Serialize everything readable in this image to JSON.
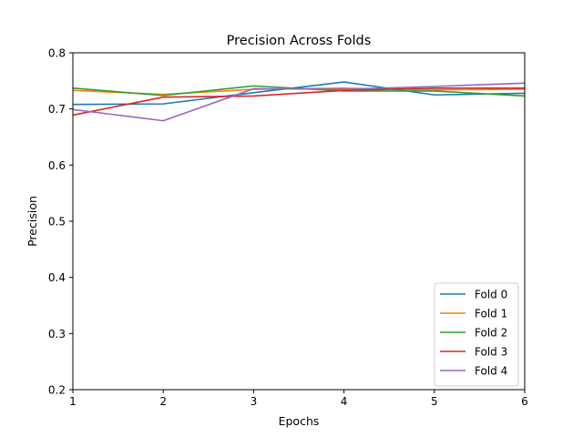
{
  "chart_data": {
    "type": "line",
    "title": "Precision Across Folds",
    "xlabel": "Epochs",
    "ylabel": "Precision",
    "xlim": [
      1,
      6
    ],
    "ylim": [
      0.2,
      0.8
    ],
    "x": [
      1,
      2,
      3,
      4,
      5,
      6
    ],
    "xticks": [
      "1",
      "2",
      "3",
      "4",
      "5",
      "6"
    ],
    "yticks": [
      "0.2",
      "0.3",
      "0.4",
      "0.5",
      "0.6",
      "0.7",
      "0.8"
    ],
    "grid": false,
    "legend_position": "lower-right",
    "series": [
      {
        "name": "Fold 0",
        "color": "#1f77b4",
        "values": [
          0.708,
          0.709,
          0.729,
          0.748,
          0.725,
          0.728
        ]
      },
      {
        "name": "Fold 1",
        "color": "#ff7f0e",
        "values": [
          0.733,
          0.726,
          0.735,
          0.737,
          0.734,
          0.735
        ]
      },
      {
        "name": "Fold 2",
        "color": "#2ca02c",
        "values": [
          0.737,
          0.724,
          0.741,
          0.732,
          0.732,
          0.723
        ]
      },
      {
        "name": "Fold 3",
        "color": "#d62728",
        "values": [
          0.689,
          0.721,
          0.723,
          0.733,
          0.737,
          0.737
        ]
      },
      {
        "name": "Fold 4",
        "color": "#9467bd",
        "values": [
          0.699,
          0.679,
          0.736,
          0.735,
          0.74,
          0.746
        ]
      }
    ]
  }
}
